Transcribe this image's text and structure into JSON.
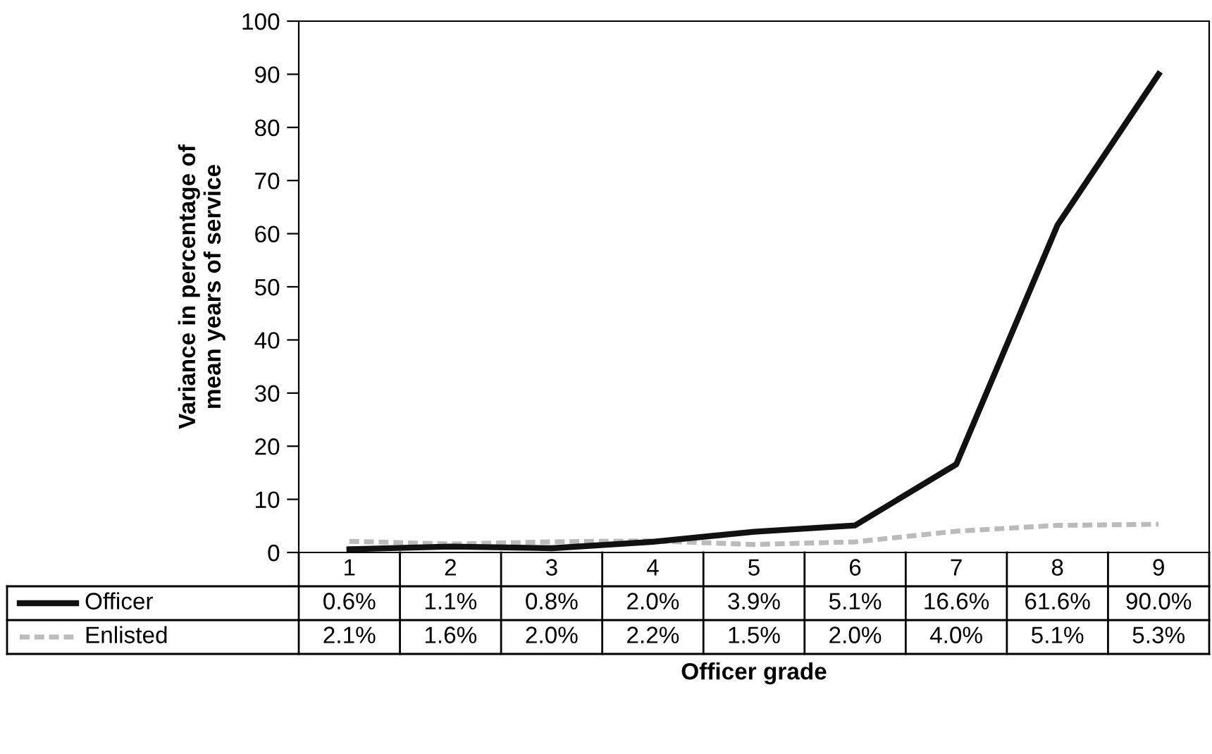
{
  "chart_data": {
    "type": "line",
    "xlabel": "Officer grade",
    "ylabel": "Variance in percentage of\nmean years of service",
    "categories": [
      "1",
      "2",
      "3",
      "4",
      "5",
      "6",
      "7",
      "8",
      "9"
    ],
    "series": [
      {
        "name": "Officer",
        "color": "#111111",
        "line_style": "solid",
        "values": [
          0.6,
          1.1,
          0.8,
          2.0,
          3.9,
          5.1,
          16.6,
          61.6,
          90.0
        ],
        "value_labels": [
          "0.6%",
          "1.1%",
          "0.8%",
          "2.0%",
          "3.9%",
          "5.1%",
          "16.6%",
          "61.6%",
          "90.0%"
        ]
      },
      {
        "name": "Enlisted",
        "color": "#bbbbbb",
        "line_style": "dotted",
        "values": [
          2.1,
          1.6,
          2.0,
          2.2,
          1.5,
          2.0,
          4.0,
          5.1,
          5.3
        ],
        "value_labels": [
          "2.1%",
          "1.6%",
          "2.0%",
          "2.2%",
          "1.5%",
          "2.0%",
          "4.0%",
          "5.1%",
          "5.3%"
        ]
      }
    ],
    "ylim": [
      0,
      100
    ],
    "yticks": [
      0,
      10,
      20,
      30,
      40,
      50,
      60,
      70,
      80,
      90,
      100
    ],
    "grid": false,
    "legend": "bottom",
    "marker": "none"
  }
}
